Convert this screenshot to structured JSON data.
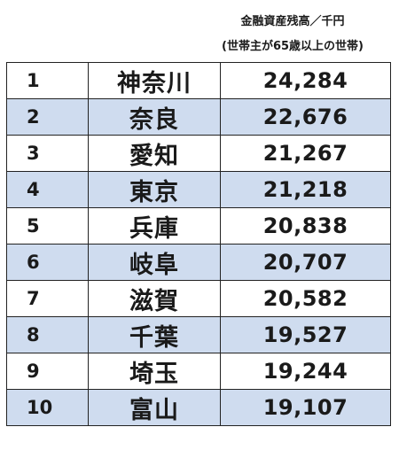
{
  "header": {
    "line1": "金融資産残高／千円",
    "line2": "(世帯主が65歳以上の世帯)"
  },
  "rows": [
    {
      "rank": "1",
      "prefecture": "神奈川",
      "amount": "24,284"
    },
    {
      "rank": "2",
      "prefecture": "奈良",
      "amount": "22,676"
    },
    {
      "rank": "3",
      "prefecture": "愛知",
      "amount": "21,267"
    },
    {
      "rank": "4",
      "prefecture": "東京",
      "amount": "21,218"
    },
    {
      "rank": "5",
      "prefecture": "兵庫",
      "amount": "20,838"
    },
    {
      "rank": "6",
      "prefecture": "岐阜",
      "amount": "20,707"
    },
    {
      "rank": "7",
      "prefecture": "滋賀",
      "amount": "20,582"
    },
    {
      "rank": "8",
      "prefecture": "千葉",
      "amount": "19,527"
    },
    {
      "rank": "9",
      "prefecture": "埼玉",
      "amount": "19,244"
    },
    {
      "rank": "10",
      "prefecture": "富山",
      "amount": "19,107"
    }
  ],
  "colors": {
    "alt_row": "#cfdcef",
    "border": "#222222",
    "text": "#1a1a1a"
  }
}
